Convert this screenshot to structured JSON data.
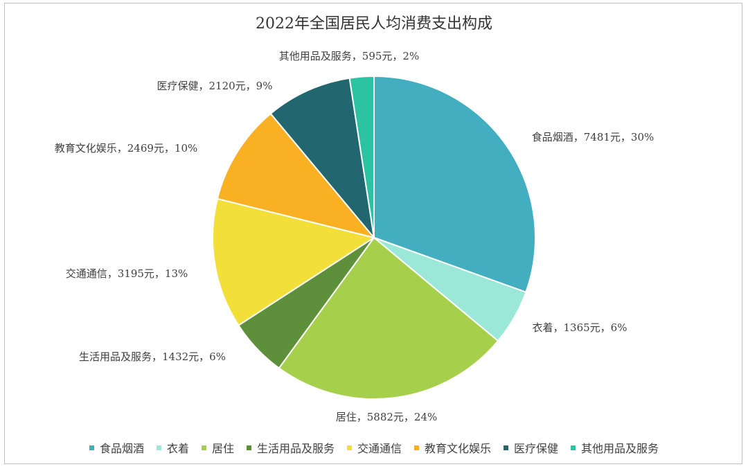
{
  "chart_data": {
    "type": "pie",
    "title": "2022年全国居民人均消费支出构成",
    "legend_position": "bottom",
    "slices": [
      {
        "name": "食品烟酒",
        "value": 7481,
        "percent": 30,
        "color": "#42aec0",
        "label": "食品烟酒，7481元，30%"
      },
      {
        "name": "衣着",
        "value": 1365,
        "percent": 6,
        "color": "#9be8d9",
        "label": "衣着，1365元，6%"
      },
      {
        "name": "居住",
        "value": 5882,
        "percent": 24,
        "color": "#a6cf4c",
        "label": "居住，5882元，24%"
      },
      {
        "name": "生活用品及服务",
        "value": 1432,
        "percent": 6,
        "color": "#5e8f3a",
        "label": "生活用品及服务，1432元，6%"
      },
      {
        "name": "交通通信",
        "value": 3195,
        "percent": 13,
        "color": "#f2df3a",
        "label": "交通通信，3195元，13%"
      },
      {
        "name": "教育文化娱乐",
        "value": 2469,
        "percent": 10,
        "color": "#f9b022",
        "label": "教育文化娱乐，2469元，10%"
      },
      {
        "name": "医疗保健",
        "value": 2120,
        "percent": 9,
        "color": "#226770",
        "label": "医疗保健，2120元，9%"
      },
      {
        "name": "其他用品及服务",
        "value": 595,
        "percent": 2,
        "color": "#2cc3a3",
        "label": "其他用品及服务，595元，2%"
      }
    ]
  }
}
